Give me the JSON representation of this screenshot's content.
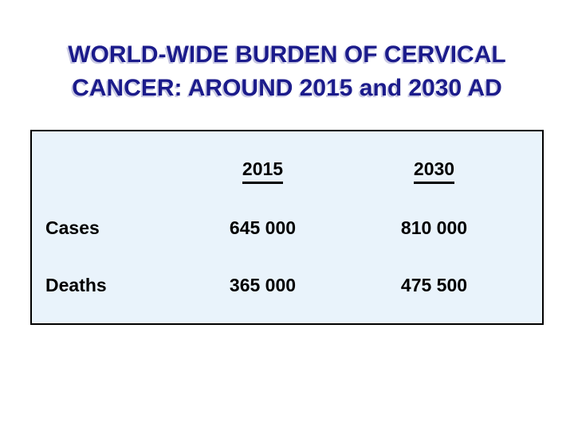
{
  "title": {
    "line1": "WORLD-WIDE BURDEN OF CERVICAL",
    "line2": "CANCER: AROUND 2015 and 2030 AD"
  },
  "table": {
    "col_headers": [
      "2015",
      "2030"
    ],
    "rows": [
      {
        "label": "Cases",
        "v2015": "645 000",
        "v2030": "810 000"
      },
      {
        "label": "Deaths",
        "v2015": "365 000",
        "v2030": "475 500"
      }
    ]
  },
  "colors": {
    "title_text": "#1b1b8b",
    "title_shadow": "#c9c9e3",
    "panel_background": "#e9f3fb",
    "panel_border": "#000000",
    "table_text": "#000000",
    "page_background": "#ffffff"
  }
}
